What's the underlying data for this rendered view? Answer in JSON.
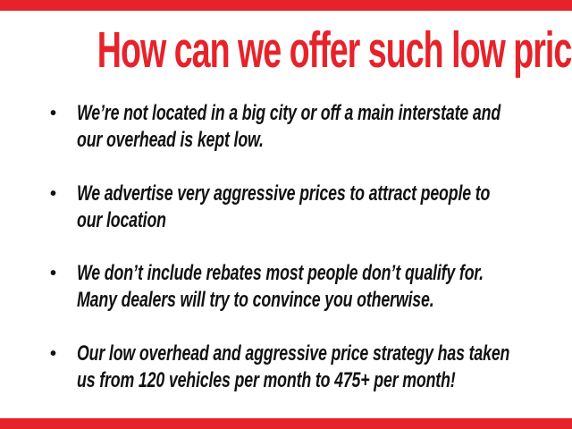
{
  "slide": {
    "title": "How can we offer such low prices?",
    "bullet_glyph": "•",
    "bullets": [
      {
        "text": "We’re not located in a big city or off a main interstate and\nour overhead is kept low."
      },
      {
        "text": "We advertise very aggressive prices to attract people to\nour location"
      },
      {
        "text": "We don’t include rebates most people don’t qualify for.\nMany dealers will try to convince you otherwise."
      },
      {
        "text": "Our low overhead and aggressive price strategy has taken\nus from 120 vehicles per month to 475+ per month!"
      }
    ],
    "colors": {
      "accent_red": "#e6232a",
      "text_black": "#111111",
      "background": "#ffffff"
    }
  }
}
